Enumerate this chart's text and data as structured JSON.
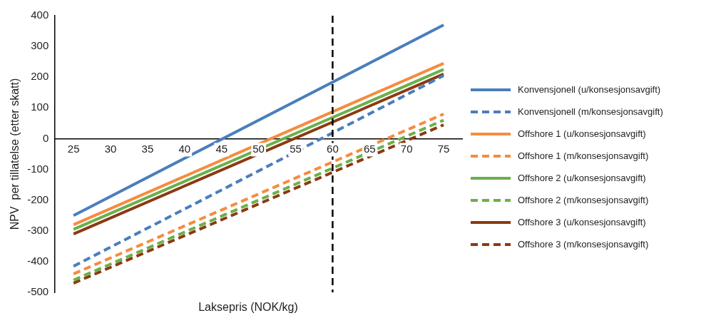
{
  "chart_data": {
    "type": "line",
    "xlabel": "Laksepris (NOK/kg)",
    "ylabel": "NPV  per tillatelse (etter skatt)",
    "x": [
      25,
      75
    ],
    "xlim": [
      22.5,
      77.5
    ],
    "xticks": [
      25,
      30,
      35,
      40,
      45,
      50,
      55,
      60,
      65,
      70,
      75
    ],
    "ylim": [
      -500,
      400
    ],
    "yticks": [
      -500,
      -400,
      -300,
      -200,
      -100,
      0,
      100,
      200,
      300,
      400
    ],
    "grid": false,
    "legend": "right",
    "marker": "none",
    "ref_lines": [
      {
        "axis": "x",
        "value": 60,
        "color": "#000000",
        "line_style": "dashed"
      }
    ],
    "series": [
      {
        "name": "Konvensjonell (u/konsesjonsavgift)",
        "color": "#4a7ebb",
        "line_style": "solid",
        "values": [
          -250,
          370
        ]
      },
      {
        "name": "Konvensjonell (m/konsesjonsavgift)",
        "color": "#4a7ebb",
        "line_style": "dashed",
        "values": [
          -415,
          205
        ]
      },
      {
        "name": "Offshore 1 (u/konsesjonsavgift)",
        "color": "#f68b3f",
        "line_style": "solid",
        "values": [
          -280,
          245
        ]
      },
      {
        "name": "Offshore 1 (m/konsesjonsavgift)",
        "color": "#f68b3f",
        "line_style": "dashed",
        "values": [
          -440,
          80
        ]
      },
      {
        "name": "Offshore 2 (u/konsesjonsavgift)",
        "color": "#6ab04c",
        "line_style": "solid",
        "values": [
          -295,
          225
        ]
      },
      {
        "name": "Offshore 2 (m/konsesjonsavgift)",
        "color": "#6ab04c",
        "line_style": "dashed",
        "values": [
          -460,
          60
        ]
      },
      {
        "name": "Offshore 3 (u/konsesjonsavgift)",
        "color": "#8b3a12",
        "line_style": "solid",
        "values": [
          -310,
          210
        ]
      },
      {
        "name": "Offshore 3 (m/konsesjonsavgift)",
        "color": "#8b3a12",
        "line_style": "dashed",
        "values": [
          -470,
          45
        ]
      }
    ]
  }
}
